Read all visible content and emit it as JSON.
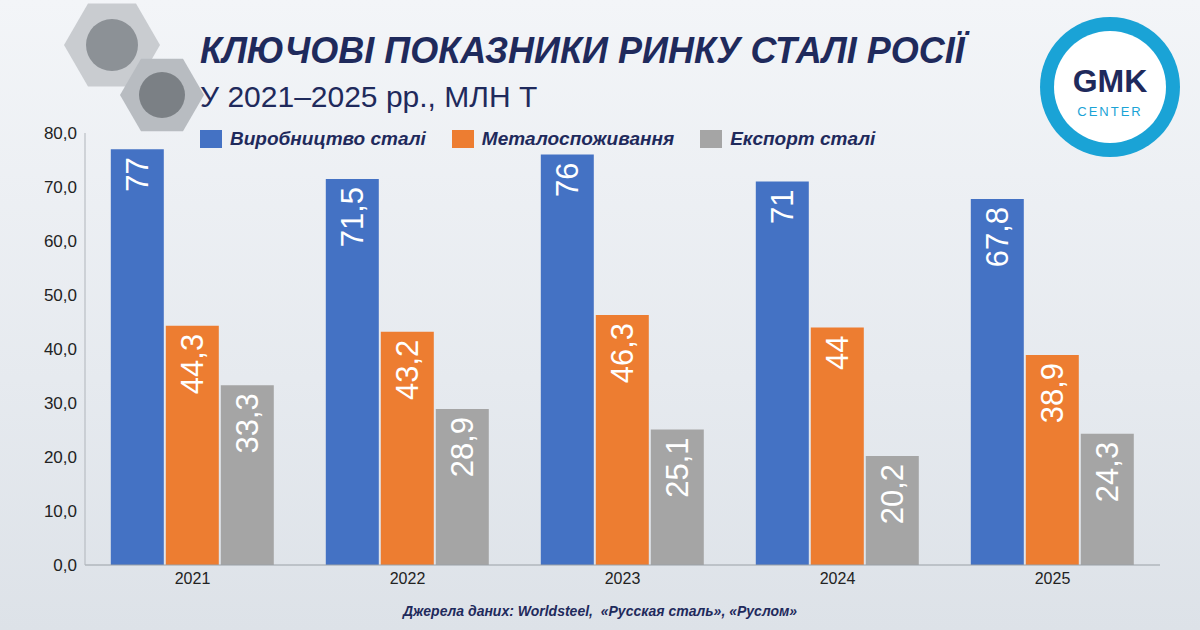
{
  "chart_data": {
    "type": "bar",
    "title": "КЛЮЧОВІ ПОКАЗНИКИ РИНКУ СТАЛІ РОСІЇ",
    "subtitle": "У 2021–2025 рр., МЛН Т",
    "source": "Джерела даних: Worldsteel,  «Русская сталь», «Руслом»",
    "logo": [
      "GMK",
      "CENTER"
    ],
    "categories": [
      "2021",
      "2022",
      "2023",
      "2024",
      "2025"
    ],
    "series": [
      {
        "name": "Виробництво сталі",
        "color": "#4472c4",
        "values": [
          77,
          71.5,
          76,
          71,
          67.8
        ],
        "value_labels": [
          "77",
          "71,5",
          "76",
          "71",
          "67,8"
        ]
      },
      {
        "name": "Металоспоживання",
        "color": "#ed7d31",
        "values": [
          44.3,
          43.2,
          46.3,
          44,
          38.9
        ],
        "value_labels": [
          "44,3",
          "43,2",
          "46,3",
          "44",
          "38,9"
        ]
      },
      {
        "name": "Експорт сталі",
        "color": "#a5a5a5",
        "values": [
          33.3,
          28.9,
          25.1,
          20.2,
          24.3
        ],
        "value_labels": [
          "33,3",
          "28,9",
          "25,1",
          "20,2",
          "24,3"
        ]
      }
    ],
    "ylim": [
      0,
      80
    ],
    "yticks": [
      {
        "value": 0,
        "label": "0,0"
      },
      {
        "value": 10,
        "label": "10,0"
      },
      {
        "value": 20,
        "label": "20,0"
      },
      {
        "value": 30,
        "label": "30,0"
      },
      {
        "value": 40,
        "label": "40,0"
      },
      {
        "value": 50,
        "label": "50,0"
      },
      {
        "value": 60,
        "label": "60,0"
      },
      {
        "value": 70,
        "label": "70,0"
      },
      {
        "value": 80,
        "label": "80,0"
      }
    ],
    "grid": false,
    "legend": "top",
    "data_labels": true
  }
}
